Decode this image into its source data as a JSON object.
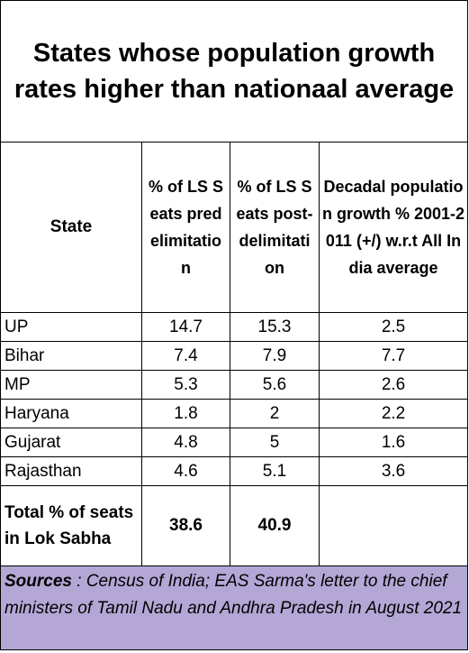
{
  "title": "States whose population growth rates  higher than nationaal average",
  "columns": {
    "state": "State",
    "pre": "% of LS Seats predelimitation",
    "post": "% of LS Seats post-delimitation",
    "growth": "Decadal population growth % 2001-2011 (+/) w.r.t All India average"
  },
  "rows": [
    {
      "state": "UP",
      "pre": "14.7",
      "post": "15.3",
      "growth": "2.5"
    },
    {
      "state": "Bihar",
      "pre": "7.4",
      "post": "7.9",
      "growth": "7.7"
    },
    {
      "state": "MP",
      "pre": "5.3",
      "post": "5.6",
      "growth": "2.6"
    },
    {
      "state": "Haryana",
      "pre": "1.8",
      "post": "2",
      "growth": "2.2"
    },
    {
      "state": "Gujarat",
      "pre": "4.8",
      "post": "5",
      "growth": "1.6"
    },
    {
      "state": "Rajasthan",
      "pre": "4.6",
      "post": "5.1",
      "growth": "3.6"
    }
  ],
  "total": {
    "label": "Total % of seats in Lok Sabha",
    "pre": "38.6",
    "post": "40.9",
    "growth": ""
  },
  "sources": {
    "label": "Sources",
    "text": " : Census of India; EAS Sarma's letter to the chief ministers of Tamil Nadu and Andhra Pradesh in August 2021"
  },
  "colors": {
    "sources_background": "#b4a7d6"
  }
}
